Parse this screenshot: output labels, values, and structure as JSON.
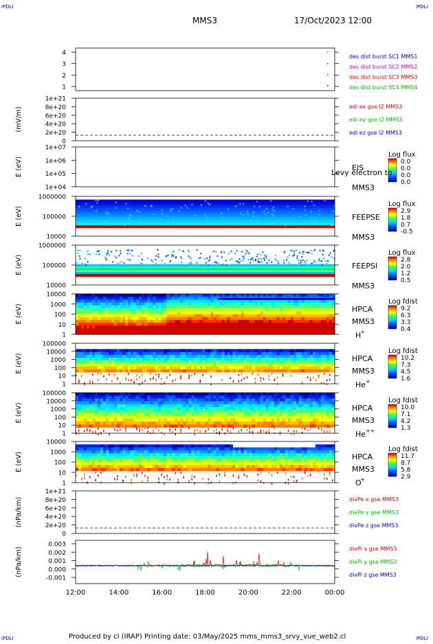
{
  "header": {
    "mission": "MMS3",
    "datetime": "17/Oct/2023 12:00",
    "corner_left_top": "IPDLI",
    "corner_right_top": "IPDLI",
    "corner_left_bottom": "IPDLI",
    "corner_right_bottom": "IPDLI"
  },
  "footer": {
    "text": "Produced by cl (IRAP)   Printing date: 03/May/2025   mms_mms3_srvy_vue_web2.cl"
  },
  "time_axis": [
    "12:00",
    "14:00",
    "16:00",
    "18:00",
    "20:00",
    "22:00",
    "00:00"
  ],
  "chart_data": [
    {
      "type": "scatter",
      "panel": "burst",
      "yticks": [
        "4",
        "3",
        "2",
        "1"
      ],
      "legend": [
        {
          "text": "des dist burst SC1 MMS1",
          "color": "#0000cc"
        },
        {
          "text": "des dist burst SC2 MMS2",
          "color": "#cc00cc"
        },
        {
          "text": "des dist burst SC3 MMS3",
          "color": "#dd0000"
        },
        {
          "text": "des dist burst SC4 MMS4",
          "color": "#00bb00"
        }
      ]
    },
    {
      "type": "line",
      "panel": "edi-e",
      "ylabel": "(mV/m)",
      "yticks": [
        "1e+21",
        "8e+20",
        "6e+20",
        "4e+20",
        "2e+20",
        "0"
      ],
      "legend": [
        {
          "text": "edi ex gse l2 MMS3",
          "color": "#dd0000"
        },
        {
          "text": "edi ey gse l2 MMS3",
          "color": "#00bb00"
        },
        {
          "text": "edi ez gse l2 MMS3",
          "color": "#0000cc"
        }
      ]
    },
    {
      "type": "heatmap",
      "panel": "eis",
      "ylabel": "E (eV)",
      "yticks": [
        "1e+07",
        "1e+06",
        "1e+05",
        "1e+04"
      ],
      "labels": [
        "EIS",
        "MMS3"
      ],
      "overlay_text": "Levy electron to",
      "colorbar_title": "Log flux",
      "colorbar_ticks": [
        "0.0",
        "0.0",
        "0.0",
        "0.0"
      ]
    },
    {
      "type": "heatmap",
      "panel": "feeps-e",
      "ylabel": "E (eV)",
      "yticks": [
        "1000000",
        "100000",
        "10000"
      ],
      "labels": [
        "FEEPSE",
        "MMS3"
      ],
      "colorbar_title": "Log flux",
      "colorbar_ticks": [
        "2.9",
        "1.8",
        "0.7",
        "-0.5"
      ]
    },
    {
      "type": "heatmap",
      "panel": "feeps-i",
      "ylabel": "E (eV)",
      "yticks": [
        "1000000",
        "100000",
        "10000"
      ],
      "labels": [
        "FEEPSI",
        "MMS3"
      ],
      "colorbar_title": "Log flux",
      "colorbar_ticks": [
        "2.8",
        "2.0",
        "1.2",
        "0.5"
      ]
    },
    {
      "type": "heatmap",
      "panel": "hpca-h",
      "ylabel": "E (eV)",
      "yticks": [
        "10000",
        "1000",
        "100",
        "10",
        "1"
      ],
      "labels": [
        "HPCA",
        "MMS3"
      ],
      "species": "H",
      "species_sup": "+",
      "colorbar_title": "Log fdist",
      "colorbar_ticks": [
        "9.2",
        "6.3",
        "3.3",
        "0.4"
      ]
    },
    {
      "type": "heatmap",
      "panel": "hpca-he",
      "ylabel": "E (eV)",
      "yticks": [
        "100000",
        "10000",
        "1000",
        "100",
        "10",
        "1"
      ],
      "labels": [
        "HPCA",
        "MMS3"
      ],
      "species": "He",
      "species_sup": "+",
      "colorbar_title": "Log fdist",
      "colorbar_ticks": [
        "10.2",
        "7.3",
        "4.5",
        "1.6"
      ]
    },
    {
      "type": "heatmap",
      "panel": "hpca-hepp",
      "ylabel": "E (eV)",
      "yticks": [
        "100000",
        "10000",
        "1000",
        "100",
        "10",
        "1"
      ],
      "labels": [
        "HPCA",
        "MMS3"
      ],
      "species": "He",
      "species_sup": "++",
      "colorbar_title": "Log fdist",
      "colorbar_ticks": [
        "10.0",
        "7.1",
        "4.2",
        "1.3"
      ]
    },
    {
      "type": "heatmap",
      "panel": "hpca-o",
      "ylabel": "E (eV)",
      "yticks": [
        "10000",
        "1000",
        "100",
        "10",
        "1"
      ],
      "labels": [
        "HPCA",
        "MMS3"
      ],
      "species": "O",
      "species_sup": "+",
      "colorbar_title": "Log fdist",
      "colorbar_ticks": [
        "11.7",
        "8.7",
        "5.8",
        "2.9"
      ]
    },
    {
      "type": "line",
      "panel": "divpe",
      "ylabel": "(nPa/km)",
      "yticks": [
        "1e+21",
        "8e+20",
        "6e+20",
        "4e+20",
        "2e+20",
        "0"
      ],
      "legend": [
        {
          "text": "divPe x gse MMS3",
          "color": "#dd0000"
        },
        {
          "text": "divPe y gse MMS3",
          "color": "#00bb00"
        },
        {
          "text": "divPe z gse MMS3",
          "color": "#0000cc"
        }
      ]
    },
    {
      "type": "line",
      "panel": "divpi",
      "ylabel": "(nPa/km)",
      "yticks": [
        "0.003",
        "0.002",
        "0.001",
        "0.000",
        "-0.001"
      ],
      "legend": [
        {
          "text": "divPi x gse MMS3",
          "color": "#dd0000"
        },
        {
          "text": "divPi y gse MMS3",
          "color": "#00bb00"
        },
        {
          "text": "divPi z gse MMS3",
          "color": "#0000cc"
        }
      ]
    }
  ]
}
